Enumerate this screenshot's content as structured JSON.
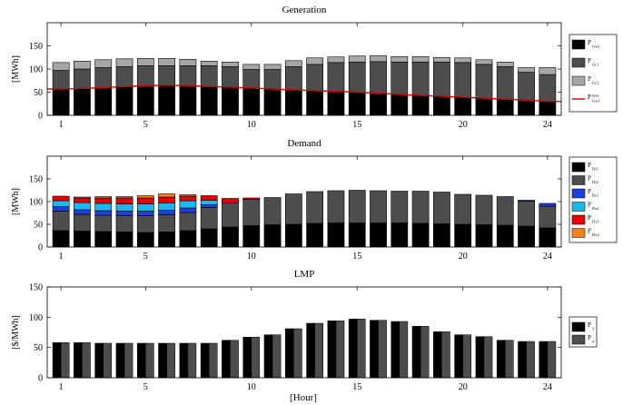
{
  "xlabel": "[Hour]",
  "xticks": [
    "1",
    "5",
    "10",
    "15",
    "20",
    "24"
  ],
  "chart_data": [
    {
      "type": "bar",
      "stacked": true,
      "title": "Generation",
      "ylabel": "[MWh]",
      "ylim": [
        0,
        200
      ],
      "yticks": [
        "0",
        "50",
        "100",
        "150"
      ],
      "grid": false,
      "legend_position": "right",
      "x": [
        1,
        2,
        3,
        4,
        5,
        6,
        7,
        8,
        9,
        10,
        11,
        12,
        13,
        14,
        15,
        16,
        17,
        18,
        19,
        20,
        21,
        22,
        23,
        24
      ],
      "series": [
        {
          "name": "P",
          "sub": "Gw1",
          "sup": "",
          "color": "#000000",
          "values": [
            57,
            58,
            60,
            62,
            64,
            65,
            64,
            62,
            61,
            59,
            57,
            55,
            53,
            52,
            50,
            48,
            45,
            43,
            41,
            39,
            37,
            35,
            33,
            30
          ]
        },
        {
          "name": "P",
          "sub": "Gc1",
          "sup": "",
          "color": "#4d4d4d",
          "values": [
            40,
            42,
            43,
            43,
            43,
            42,
            43,
            45,
            44,
            40,
            42,
            50,
            57,
            62,
            65,
            68,
            70,
            72,
            74,
            75,
            73,
            70,
            60,
            58
          ]
        },
        {
          "name": "P",
          "sub": "Gc2",
          "sup": "",
          "color": "#a6a6a6",
          "values": [
            17,
            17,
            17,
            17,
            16,
            16,
            14,
            10,
            10,
            11,
            11,
            13,
            14,
            12,
            13,
            13,
            12,
            12,
            10,
            10,
            10,
            10,
            10,
            15
          ]
        }
      ],
      "line_series": {
        "name": "P",
        "sub": "Gw1",
        "sup": "max",
        "color": "#d40000",
        "values": [
          57,
          58,
          60,
          62,
          64,
          65,
          64,
          62,
          61,
          59,
          57,
          55,
          53,
          52,
          50,
          48,
          45,
          43,
          41,
          39,
          37,
          35,
          33,
          30
        ]
      }
    },
    {
      "type": "bar",
      "stacked": true,
      "title": "Demand",
      "ylabel": "[MWh]",
      "ylim": [
        0,
        200
      ],
      "yticks": [
        "0",
        "50",
        "100",
        "150"
      ],
      "grid": false,
      "legend_position": "right",
      "x": [
        1,
        2,
        3,
        4,
        5,
        6,
        7,
        8,
        9,
        10,
        11,
        12,
        13,
        14,
        15,
        16,
        17,
        18,
        19,
        20,
        21,
        22,
        23,
        24
      ],
      "series": [
        {
          "name": "P",
          "sub": "Df1",
          "sup": "",
          "color": "#000000",
          "values": [
            36,
            35,
            34,
            33,
            32,
            33,
            36,
            40,
            44,
            47,
            49,
            50,
            52,
            53,
            53,
            53,
            53,
            52,
            51,
            50,
            49,
            48,
            46,
            42
          ]
        },
        {
          "name": "P",
          "sub": "Df2",
          "sup": "",
          "color": "#4d4d4d",
          "values": [
            43,
            37,
            36,
            36,
            37,
            38,
            40,
            47,
            53,
            58,
            60,
            67,
            70,
            71,
            72,
            71,
            70,
            71,
            70,
            66,
            65,
            63,
            55,
            48
          ]
        },
        {
          "name": "P",
          "sub": "Ds1",
          "sup": "",
          "color": "#1f3fd6",
          "values": [
            10,
            10,
            10,
            10,
            10,
            10,
            10,
            6,
            0,
            0,
            0,
            0,
            0,
            0,
            0,
            0,
            0,
            0,
            0,
            0,
            0,
            0,
            2,
            6
          ]
        },
        {
          "name": "P",
          "sub": "Ds2",
          "sup": "",
          "color": "#19b8ef",
          "values": [
            13,
            16,
            16,
            16,
            16,
            16,
            16,
            10,
            0,
            0,
            0,
            0,
            0,
            0,
            0,
            0,
            0,
            0,
            0,
            0,
            0,
            0,
            0,
            0
          ]
        },
        {
          "name": "P",
          "sub": "Dx1",
          "sup": "",
          "color": "#e80000",
          "values": [
            10,
            10,
            12,
            13,
            13,
            13,
            10,
            10,
            10,
            3,
            0,
            0,
            0,
            0,
            0,
            0,
            0,
            0,
            0,
            0,
            0,
            0,
            0,
            0
          ]
        },
        {
          "name": "P",
          "sub": "Dx2",
          "sup": "",
          "color": "#f58220",
          "values": [
            0,
            2,
            3,
            3,
            5,
            7,
            3,
            0,
            0,
            0,
            0,
            0,
            0,
            0,
            0,
            0,
            0,
            0,
            0,
            0,
            0,
            0,
            0,
            0
          ]
        }
      ]
    },
    {
      "type": "bar",
      "grouped": true,
      "title": "LMP",
      "ylabel": "[$/MWh]",
      "ylim": [
        0,
        150
      ],
      "yticks": [
        "0",
        "50",
        "100",
        "150"
      ],
      "grid": false,
      "legend_position": "right",
      "x": [
        1,
        2,
        3,
        4,
        5,
        6,
        7,
        8,
        9,
        10,
        11,
        12,
        13,
        14,
        15,
        16,
        17,
        18,
        19,
        20,
        21,
        22,
        23,
        24
      ],
      "series": [
        {
          "name": "P",
          "sub": "3",
          "sup": "",
          "color": "#000000",
          "values": [
            58,
            58,
            57,
            57,
            57,
            57,
            57,
            57,
            62,
            67,
            71,
            81,
            90,
            94,
            97,
            95,
            93,
            85,
            76,
            71,
            68,
            62,
            60,
            60
          ]
        },
        {
          "name": "P",
          "sub": "4",
          "sup": "",
          "color": "#4d4d4d",
          "values": [
            58,
            58,
            57,
            57,
            57,
            57,
            57,
            57,
            62,
            67,
            71,
            81,
            90,
            94,
            97,
            95,
            93,
            85,
            76,
            71,
            68,
            62,
            60,
            60
          ]
        }
      ]
    }
  ]
}
